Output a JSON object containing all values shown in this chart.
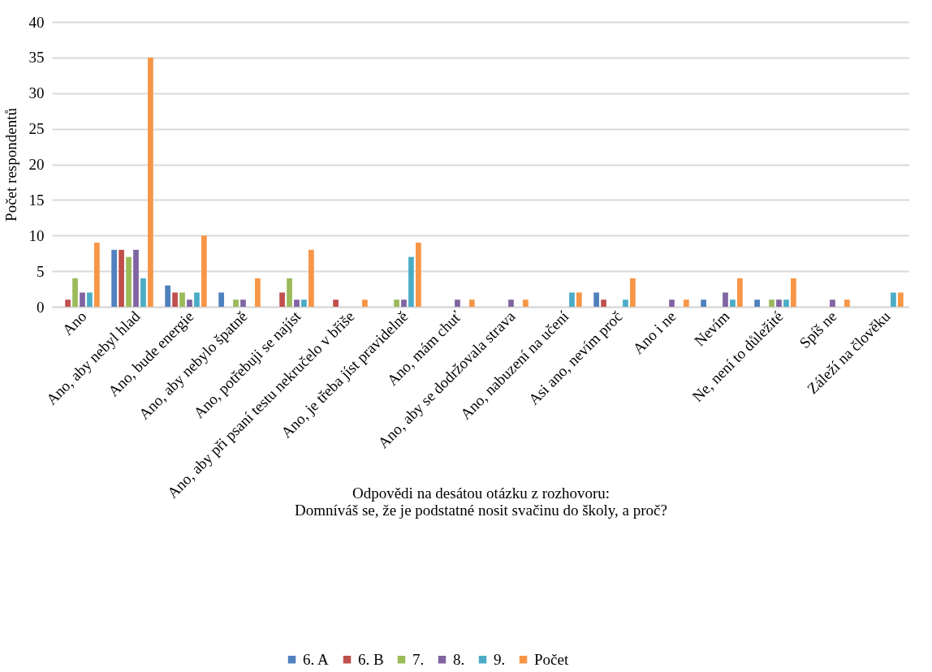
{
  "chart_data": {
    "type": "bar",
    "xlabel": "Odpovědi na desátou otázku z rozhovoru:\nDomníváš se, že je podstatné nosit svačinu do školy, a proč?",
    "ylabel": "Počet respondentů",
    "categories": [
      "Ano",
      "Ano, aby nebyl hlad",
      "Ano, bude energie",
      "Ano, aby nebylo špatně",
      "Ano, potřebuji se najíst",
      "Ano, aby při psaní testu nekručelo v břiše",
      "Ano, je třeba jíst pravidelně",
      "Ano, mám chuť",
      "Ano, aby se dodržovala strava",
      "Ano, nabuzení na učení",
      "Asi ano, nevím proč",
      "Ano i ne",
      "Nevím",
      "Ne, není to důležité",
      "Spíš ne",
      "Záleží na člověku"
    ],
    "series": [
      {
        "name": "6. A",
        "color": "#4f81bd",
        "values": [
          0,
          8,
          3,
          2,
          0,
          0,
          0,
          0,
          0,
          0,
          2,
          0,
          1,
          1,
          0,
          0
        ]
      },
      {
        "name": "6. B",
        "color": "#c0504d",
        "values": [
          1,
          8,
          2,
          0,
          2,
          1,
          0,
          0,
          0,
          0,
          1,
          0,
          0,
          0,
          0,
          0
        ]
      },
      {
        "name": "7.",
        "color": "#9bbb59",
        "values": [
          4,
          7,
          2,
          1,
          4,
          0,
          1,
          0,
          0,
          0,
          0,
          0,
          0,
          1,
          0,
          0
        ]
      },
      {
        "name": "8.",
        "color": "#8064a2",
        "values": [
          2,
          8,
          1,
          1,
          1,
          0,
          1,
          1,
          1,
          0,
          0,
          1,
          2,
          1,
          1,
          0
        ]
      },
      {
        "name": "9.",
        "color": "#4bacc6",
        "values": [
          2,
          4,
          2,
          0,
          1,
          0,
          7,
          0,
          0,
          2,
          1,
          0,
          1,
          1,
          0,
          2
        ]
      },
      {
        "name": "Počet",
        "color": "#f79646",
        "values": [
          9,
          35,
          10,
          4,
          8,
          1,
          9,
          1,
          1,
          2,
          4,
          1,
          4,
          4,
          1,
          2
        ]
      }
    ],
    "ylim": [
      0,
      40
    ],
    "yticks": [
      0,
      5,
      10,
      15,
      20,
      25,
      30,
      35,
      40
    ],
    "grid": "y",
    "legend": "bottom"
  }
}
